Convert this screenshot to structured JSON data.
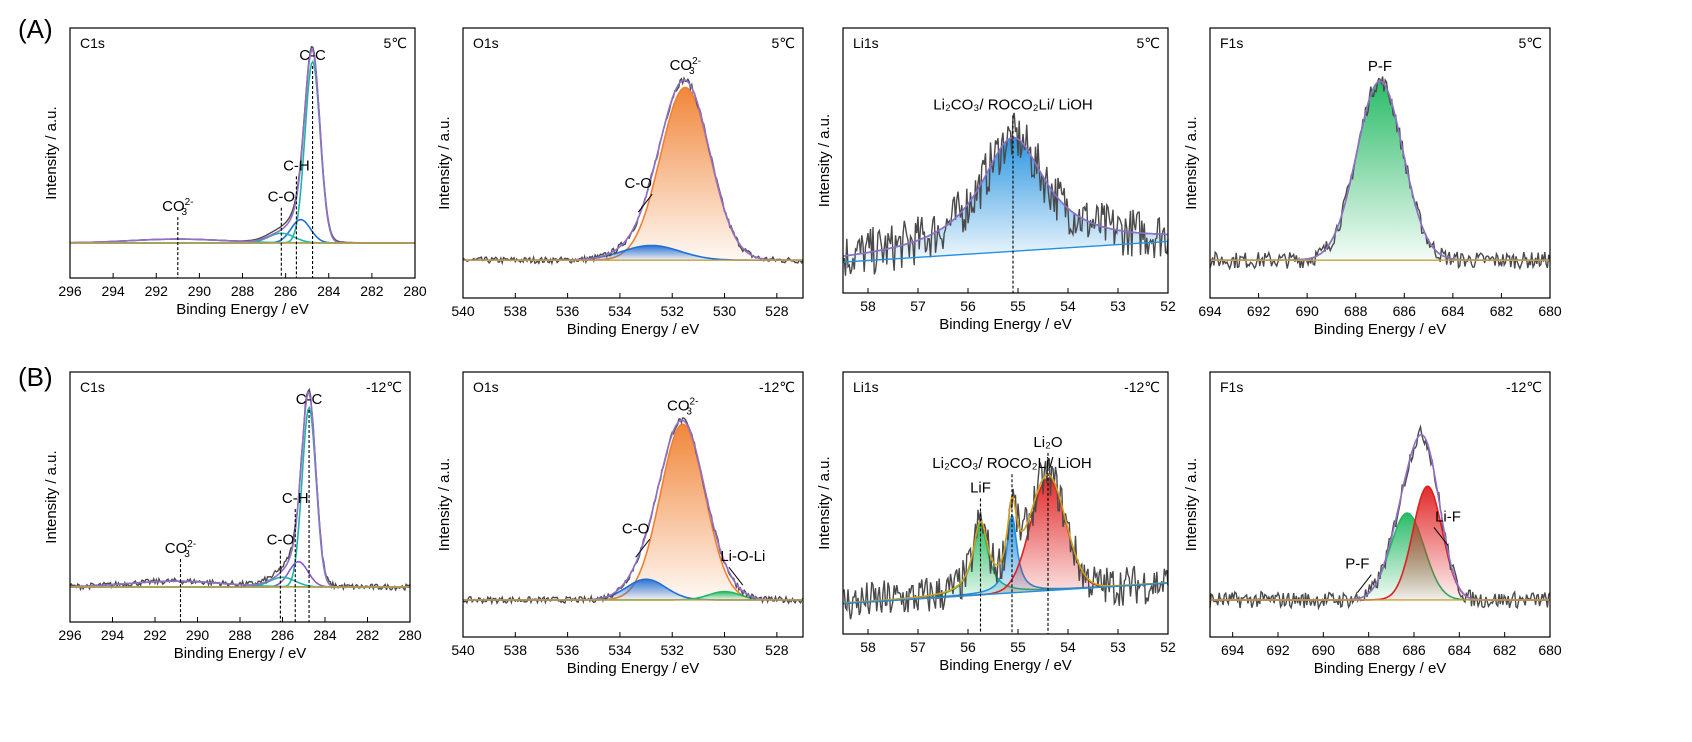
{
  "rows": [
    {
      "label": "(A)",
      "temperature": "5℃"
    },
    {
      "label": "(B)",
      "temperature": "-12℃"
    }
  ],
  "axis": {
    "xlabel": "Binding Energy / eV",
    "ylabel": "Intensity / a.u."
  },
  "colors": {
    "raw": "#4a4a4a",
    "envelope": "#9370c8",
    "background_c": "#c8a040",
    "teal": "#1fb5a8",
    "blue": "#1f6fd6",
    "red": "#e02020",
    "orange": "#f08030",
    "green": "#20b860",
    "violet": "#8a5ad0",
    "gold": "#d0a020",
    "sky": "#2090e0"
  },
  "chart_data": [
    {
      "id": "A-C1s",
      "type": "line",
      "title": "C1s",
      "temperature": "5℃",
      "xlim": [
        296,
        280
      ],
      "xticks": [
        296,
        294,
        292,
        290,
        288,
        286,
        284,
        282,
        280
      ],
      "xlabel": "Binding Energy / eV",
      "ylabel": "Intensity / a.u.",
      "baseline": [
        [
          296,
          0.0
        ],
        [
          280,
          0.0
        ]
      ],
      "peaks": [
        {
          "center": 284.75,
          "height": 0.93,
          "width": 0.35,
          "color": "teal"
        },
        {
          "center": 285.3,
          "height": 0.12,
          "width": 0.45,
          "color": "blue"
        },
        {
          "center": 286.2,
          "height": 0.05,
          "width": 0.6,
          "color": "teal"
        },
        {
          "center": 291.0,
          "height": 0.02,
          "width": 2.2,
          "color": "teal"
        }
      ],
      "raw_noise": 0.0,
      "annotations": [
        {
          "text": "C-C",
          "x": 284.75,
          "line": true
        },
        {
          "text": "C-H",
          "x": 285.5,
          "line": true
        },
        {
          "text": "C-O",
          "x": 286.2,
          "line": true
        },
        {
          "text": "CO",
          "sup": "2-",
          "sub": "3",
          "x": 291.0,
          "line": true
        }
      ]
    },
    {
      "id": "A-O1s",
      "type": "line",
      "title": "O1s",
      "temperature": "5℃",
      "xlim": [
        540,
        527
      ],
      "xticks": [
        540,
        538,
        536,
        534,
        532,
        530,
        528
      ],
      "xlabel": "Binding Energy / eV",
      "ylabel": "Intensity / a.u.",
      "peaks": [
        {
          "center": 531.5,
          "height": 0.82,
          "width": 0.95,
          "color": "orange",
          "fill": true
        },
        {
          "center": 532.8,
          "height": 0.07,
          "width": 1.1,
          "color": "blue",
          "fill": true
        }
      ],
      "annotations": [
        {
          "text": "CO",
          "sup": "2-",
          "sub": "3",
          "x": 531.5,
          "line": false
        },
        {
          "text": "C-O",
          "x": 533.3,
          "arrow": true
        }
      ]
    },
    {
      "id": "A-Li1s",
      "type": "line",
      "title": "Li1s",
      "temperature": "5℃",
      "xlim": [
        58.5,
        52
      ],
      "xticks": [
        58,
        57,
        56,
        55,
        54,
        53,
        52
      ],
      "xlabel": "Binding Energy / eV",
      "ylabel": "Intensity / a.u.",
      "peaks": [
        {
          "center": 55.1,
          "height": 0.55,
          "width": 0.8,
          "color": "sky",
          "fill": true,
          "lorentz": true
        }
      ],
      "raw_noise": 0.12,
      "annotations": [
        {
          "text": "Li₂CO₃/ ROCO₂Li/ LiOH",
          "x": 55.1,
          "line": true
        }
      ]
    },
    {
      "id": "A-F1s",
      "type": "line",
      "title": "F1s",
      "temperature": "5℃",
      "xlim": [
        694,
        680
      ],
      "xticks": [
        694,
        692,
        690,
        688,
        686,
        684,
        682,
        680
      ],
      "xlabel": "Binding Energy / eV",
      "ylabel": "Intensity / a.u.",
      "peaks": [
        {
          "center": 687.0,
          "height": 0.85,
          "width": 0.95,
          "color": "green",
          "fill": true
        }
      ],
      "raw_noise": 0.04,
      "annotations": [
        {
          "text": "P-F",
          "x": 687.0,
          "line": false
        }
      ]
    },
    {
      "id": "B-C1s",
      "type": "line",
      "title": "C1s",
      "temperature": "-12℃",
      "xlim": [
        296,
        280
      ],
      "xticks": [
        296,
        294,
        292,
        290,
        288,
        286,
        284,
        282,
        280
      ],
      "xlabel": "Binding Energy / eV",
      "ylabel": "Intensity / a.u.",
      "peaks": [
        {
          "center": 284.75,
          "height": 0.92,
          "width": 0.33,
          "color": "teal"
        },
        {
          "center": 285.25,
          "height": 0.13,
          "width": 0.45,
          "color": "violet"
        },
        {
          "center": 286.0,
          "height": 0.05,
          "width": 0.6,
          "color": "teal"
        },
        {
          "center": 291.0,
          "height": 0.03,
          "width": 2.2,
          "color": "teal"
        }
      ],
      "annotations": [
        {
          "text": "C-C",
          "x": 284.75,
          "line": true
        },
        {
          "text": "C-H",
          "x": 285.4,
          "line": true
        },
        {
          "text": "C-O",
          "x": 286.1,
          "line": true
        },
        {
          "text": "CO",
          "sup": "2-",
          "sub": "3",
          "x": 290.8,
          "line": true
        }
      ]
    },
    {
      "id": "B-O1s",
      "type": "line",
      "title": "O1s",
      "temperature": "-12℃",
      "xlim": [
        540,
        527
      ],
      "xticks": [
        540,
        538,
        536,
        534,
        532,
        530,
        528
      ],
      "xlabel": "Binding Energy / eV",
      "ylabel": "Intensity / a.u.",
      "peaks": [
        {
          "center": 531.6,
          "height": 0.85,
          "width": 0.85,
          "color": "orange",
          "fill": true
        },
        {
          "center": 533.0,
          "height": 0.1,
          "width": 0.75,
          "color": "blue",
          "fill": true
        },
        {
          "center": 530.0,
          "height": 0.04,
          "width": 0.6,
          "color": "green",
          "fill": true
        }
      ],
      "annotations": [
        {
          "text": "CO",
          "sup": "2-",
          "sub": "3",
          "x": 531.6,
          "line": false
        },
        {
          "text": "C-O",
          "x": 533.4,
          "arrow": true
        },
        {
          "text": "Li-O-Li",
          "x": 529.3,
          "arrow": true
        }
      ]
    },
    {
      "id": "B-Li1s",
      "type": "line",
      "title": "Li1s",
      "temperature": "-12℃",
      "xlim": [
        58.5,
        52
      ],
      "xticks": [
        58,
        57,
        56,
        55,
        54,
        53,
        52
      ],
      "xlabel": "Binding Energy / eV",
      "ylabel": "Intensity / a.u.",
      "peaks": [
        {
          "center": 55.75,
          "height": 0.35,
          "width": 0.18,
          "color": "green",
          "fill": true,
          "lorentz": true
        },
        {
          "center": 55.12,
          "height": 0.38,
          "width": 0.12,
          "color": "sky",
          "fill": true,
          "lorentz": true
        },
        {
          "center": 54.4,
          "height": 0.55,
          "width": 0.35,
          "color": "red",
          "fill": true
        }
      ],
      "raw_noise": 0.1,
      "annotations": [
        {
          "text": "Li₂CO₃/ ROCO₂Li/ LiOH",
          "x": 55.12,
          "line": true
        },
        {
          "text": "LiF",
          "x": 55.75,
          "line": true
        },
        {
          "text": "Li₂O",
          "x": 54.4,
          "line": true
        }
      ]
    },
    {
      "id": "B-F1s",
      "type": "line",
      "title": "F1s",
      "temperature": "-12℃",
      "xlim": [
        695,
        680
      ],
      "xticks": [
        694,
        692,
        690,
        688,
        686,
        684,
        682,
        680
      ],
      "xlabel": "Binding Energy / eV",
      "ylabel": "Intensity / a.u.",
      "peaks": [
        {
          "center": 686.3,
          "height": 0.42,
          "width": 0.75,
          "color": "green",
          "fill": true
        },
        {
          "center": 685.4,
          "height": 0.55,
          "width": 0.65,
          "color": "red",
          "fill": true
        }
      ],
      "raw_noise": 0.04,
      "annotations": [
        {
          "text": "P-F",
          "x": 688.5,
          "arrow": true
        },
        {
          "text": "Li-F",
          "x": 684.5,
          "arrow": true
        }
      ]
    }
  ]
}
